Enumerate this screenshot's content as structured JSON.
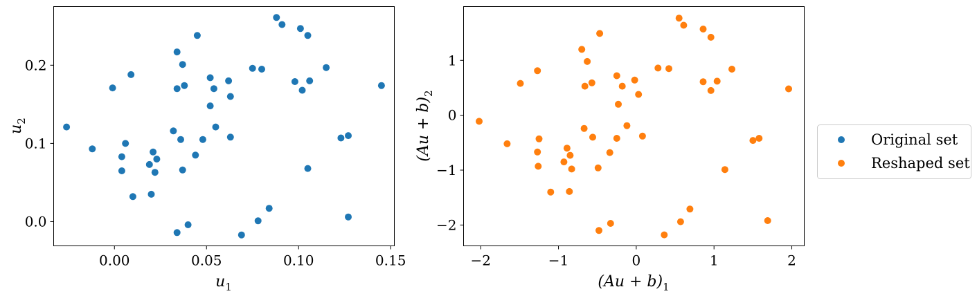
{
  "chart_data": [
    {
      "type": "scatter",
      "panel": "left",
      "xlabel": "u",
      "xlabel_sub": "1",
      "ylabel": "u",
      "ylabel_sub": "2",
      "xlim": [
        -0.033,
        0.152
      ],
      "ylim": [
        -0.031,
        0.275
      ],
      "xticks": [
        0.0,
        0.05,
        0.1,
        0.15
      ],
      "xtick_labels": [
        "0.00",
        "0.05",
        "0.10",
        "0.15"
      ],
      "yticks": [
        0.0,
        0.1,
        0.2
      ],
      "ytick_labels": [
        "0.0",
        "0.1",
        "0.2"
      ],
      "grid": false,
      "series": [
        {
          "name": "Original set",
          "color": "#1f77b4",
          "points": [
            [
              -0.026,
              0.121
            ],
            [
              -0.012,
              0.093
            ],
            [
              -0.001,
              0.171
            ],
            [
              0.004,
              0.083
            ],
            [
              0.004,
              0.065
            ],
            [
              0.006,
              0.1
            ],
            [
              0.009,
              0.188
            ],
            [
              0.01,
              0.032
            ],
            [
              0.019,
              0.073
            ],
            [
              0.02,
              0.035
            ],
            [
              0.021,
              0.089
            ],
            [
              0.022,
              0.063
            ],
            [
              0.023,
              0.08
            ],
            [
              0.032,
              0.116
            ],
            [
              0.034,
              0.217
            ],
            [
              0.034,
              0.17
            ],
            [
              0.034,
              -0.014
            ],
            [
              0.036,
              0.105
            ],
            [
              0.037,
              0.201
            ],
            [
              0.037,
              0.066
            ],
            [
              0.038,
              0.174
            ],
            [
              0.04,
              -0.004
            ],
            [
              0.044,
              0.085
            ],
            [
              0.045,
              0.238
            ],
            [
              0.048,
              0.105
            ],
            [
              0.052,
              0.184
            ],
            [
              0.052,
              0.148
            ],
            [
              0.054,
              0.17
            ],
            [
              0.055,
              0.121
            ],
            [
              0.062,
              0.18
            ],
            [
              0.063,
              0.16
            ],
            [
              0.063,
              0.108
            ],
            [
              0.069,
              -0.017
            ],
            [
              0.075,
              0.196
            ],
            [
              0.078,
              0.001
            ],
            [
              0.08,
              0.195
            ],
            [
              0.084,
              0.017
            ],
            [
              0.088,
              0.261
            ],
            [
              0.091,
              0.252
            ],
            [
              0.098,
              0.179
            ],
            [
              0.101,
              0.247
            ],
            [
              0.102,
              0.168
            ],
            [
              0.105,
              0.238
            ],
            [
              0.105,
              0.068
            ],
            [
              0.106,
              0.18
            ],
            [
              0.115,
              0.197
            ],
            [
              0.123,
              0.107
            ],
            [
              0.127,
              0.11
            ],
            [
              0.127,
              0.006
            ],
            [
              0.145,
              0.174
            ]
          ]
        }
      ]
    },
    {
      "type": "scatter",
      "panel": "right",
      "xlabel": "(Au + b)",
      "xlabel_sub": "1",
      "ylabel": "(Au + b)",
      "ylabel_sub": "2",
      "xlim": [
        -2.22,
        2.16
      ],
      "ylim": [
        -2.38,
        1.98
      ],
      "xticks": [
        -2,
        -1,
        0,
        1,
        2
      ],
      "xtick_labels": [
        "−2",
        "−1",
        "0",
        "1",
        "2"
      ],
      "yticks": [
        -2,
        -1,
        0,
        1
      ],
      "ytick_labels": [
        "−2",
        "−1",
        "0",
        "1"
      ],
      "grid": false,
      "series": [
        {
          "name": "Reshaped set",
          "color": "#ff7f0e",
          "points": [
            [
              -2.02,
              -0.11
            ],
            [
              -1.66,
              -0.52
            ],
            [
              -1.49,
              0.58
            ],
            [
              -1.27,
              0.81
            ],
            [
              -1.25,
              -0.43
            ],
            [
              -1.27,
              -0.67
            ],
            [
              -1.26,
              -0.93
            ],
            [
              -1.1,
              -1.4
            ],
            [
              -0.93,
              -0.85
            ],
            [
              -0.89,
              -0.6
            ],
            [
              -0.86,
              -1.39
            ],
            [
              -0.85,
              -0.73
            ],
            [
              -0.83,
              -0.98
            ],
            [
              -0.7,
              1.2
            ],
            [
              -0.67,
              -0.24
            ],
            [
              -0.66,
              0.53
            ],
            [
              -0.63,
              0.98
            ],
            [
              -0.57,
              0.59
            ],
            [
              -0.56,
              -0.4
            ],
            [
              -0.49,
              -0.96
            ],
            [
              -0.48,
              -2.1
            ],
            [
              -0.47,
              1.49
            ],
            [
              -0.34,
              -0.68
            ],
            [
              -0.33,
              -1.97
            ],
            [
              -0.25,
              0.72
            ],
            [
              -0.25,
              -0.42
            ],
            [
              -0.23,
              0.2
            ],
            [
              -0.18,
              0.53
            ],
            [
              -0.12,
              -0.19
            ],
            [
              -0.02,
              0.64
            ],
            [
              0.03,
              0.38
            ],
            [
              0.08,
              -0.38
            ],
            [
              0.28,
              0.86
            ],
            [
              0.36,
              -2.18
            ],
            [
              0.42,
              0.85
            ],
            [
              0.55,
              1.77
            ],
            [
              0.57,
              -1.94
            ],
            [
              0.61,
              1.64
            ],
            [
              0.69,
              -1.71
            ],
            [
              0.86,
              1.57
            ],
            [
              0.86,
              0.61
            ],
            [
              0.96,
              1.42
            ],
            [
              0.96,
              0.45
            ],
            [
              1.04,
              0.62
            ],
            [
              1.14,
              -0.99
            ],
            [
              1.23,
              0.84
            ],
            [
              1.5,
              -0.46
            ],
            [
              1.58,
              -0.42
            ],
            [
              1.69,
              -1.92
            ],
            [
              1.96,
              0.48
            ]
          ]
        }
      ]
    }
  ],
  "legend": {
    "placement": "right",
    "entries": [
      {
        "label": "Original set",
        "color": "#1f77b4"
      },
      {
        "label": "Reshaped set",
        "color": "#ff7f0e"
      }
    ]
  }
}
